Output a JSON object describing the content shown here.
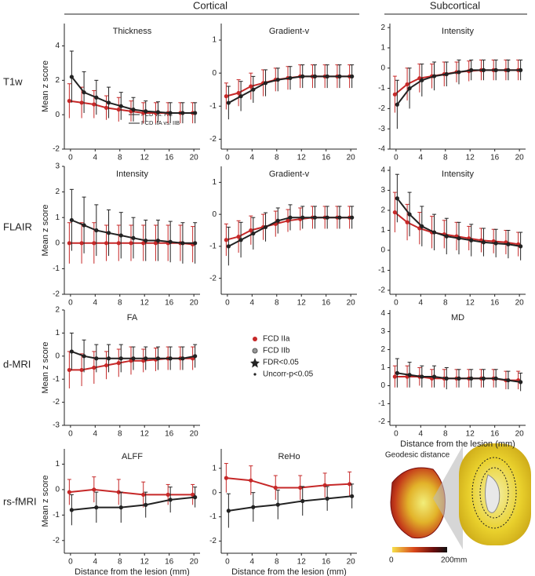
{
  "header": {
    "cortical": "Cortical",
    "subcortical": "Subcortical"
  },
  "row_labels": [
    "T1w",
    "FLAIR",
    "d-MRI",
    "rs-fMRI"
  ],
  "legend": {
    "items": [
      {
        "label": "FCD IIa",
        "color": "#c62828"
      },
      {
        "label": "FCD IIb",
        "color": "#777777"
      },
      {
        "label": "FDR<0.05",
        "color": "#222222"
      },
      {
        "label": "Uncorr-p<0.05",
        "color": "#222222"
      }
    ]
  },
  "inset": {
    "title": "Geodesic distance",
    "scale_min": "0",
    "scale_max": "200mm"
  },
  "chart_data": [
    {
      "type": "line",
      "title": "Thickness",
      "ylabel": "Mean z score",
      "annotations": [
        "FCD vs. HC",
        "FCD IIA vs. IIB"
      ],
      "x": [
        0,
        2,
        4,
        6,
        8,
        10,
        12,
        14,
        16,
        18,
        20
      ],
      "xlim": [
        -1,
        21
      ],
      "xticks": [
        0,
        4,
        8,
        12,
        16,
        20
      ],
      "ylim": [
        -2,
        5.3
      ],
      "yticks": [
        -2,
        0,
        2,
        4
      ],
      "series": [
        {
          "color": "#c62828",
          "values": [
            0.8,
            0.7,
            0.6,
            0.4,
            0.3,
            0.2,
            0.1,
            0.1,
            0.1,
            0.1,
            0.1
          ],
          "errors": [
            1.0,
            0.9,
            0.8,
            0.7,
            0.7,
            0.6,
            0.6,
            0.6,
            0.6,
            0.6,
            0.6
          ]
        },
        {
          "color": "#222222",
          "values": [
            2.2,
            1.3,
            1.0,
            0.7,
            0.5,
            0.3,
            0.2,
            0.15,
            0.1,
            0.1,
            0.1
          ],
          "errors": [
            1.5,
            1.2,
            1.0,
            0.9,
            0.8,
            0.7,
            0.6,
            0.6,
            0.6,
            0.6,
            0.6
          ]
        }
      ]
    },
    {
      "type": "line",
      "title": "Gradient-v",
      "x": [
        0,
        2,
        4,
        6,
        8,
        10,
        12,
        14,
        16,
        18,
        20
      ],
      "xlim": [
        -1,
        21
      ],
      "xticks": [
        0,
        4,
        8,
        12,
        16,
        20
      ],
      "ylim": [
        -2.3,
        1.5
      ],
      "yticks": [
        -2,
        -1,
        0,
        1
      ],
      "series": [
        {
          "color": "#c62828",
          "values": [
            -0.7,
            -0.6,
            -0.4,
            -0.3,
            -0.2,
            -0.15,
            -0.1,
            -0.1,
            -0.1,
            -0.1,
            -0.1
          ],
          "errors": [
            0.4,
            0.4,
            0.4,
            0.4,
            0.35,
            0.35,
            0.35,
            0.35,
            0.35,
            0.35,
            0.35
          ]
        },
        {
          "color": "#222222",
          "values": [
            -0.9,
            -0.7,
            -0.5,
            -0.3,
            -0.2,
            -0.15,
            -0.1,
            -0.1,
            -0.1,
            -0.1,
            -0.1
          ],
          "errors": [
            0.5,
            0.45,
            0.4,
            0.4,
            0.35,
            0.35,
            0.35,
            0.35,
            0.35,
            0.35,
            0.35
          ]
        }
      ]
    },
    {
      "type": "line",
      "title": "Intensity",
      "x": [
        0,
        2,
        4,
        6,
        8,
        10,
        12,
        14,
        16,
        18,
        20
      ],
      "xlim": [
        -1,
        21
      ],
      "xticks": [
        0,
        4,
        8,
        12,
        16,
        20
      ],
      "ylim": [
        -4,
        2.2
      ],
      "yticks": [
        -4,
        -3,
        -2,
        -1,
        0,
        1,
        2
      ],
      "series": [
        {
          "color": "#c62828",
          "values": [
            -1.3,
            -0.8,
            -0.5,
            -0.4,
            -0.3,
            -0.2,
            -0.15,
            -0.1,
            -0.1,
            -0.1,
            -0.1
          ],
          "errors": [
            0.9,
            0.8,
            0.7,
            0.6,
            0.6,
            0.5,
            0.5,
            0.5,
            0.5,
            0.5,
            0.5
          ]
        },
        {
          "color": "#222222",
          "values": [
            -1.8,
            -1.0,
            -0.6,
            -0.4,
            -0.3,
            -0.2,
            -0.1,
            -0.1,
            -0.1,
            -0.1,
            -0.1
          ],
          "errors": [
            1.2,
            1.0,
            0.8,
            0.7,
            0.6,
            0.6,
            0.5,
            0.5,
            0.5,
            0.5,
            0.5
          ]
        }
      ]
    },
    {
      "type": "line",
      "title": "Intensity",
      "ylabel": "Mean z score",
      "x": [
        0,
        2,
        4,
        6,
        8,
        10,
        12,
        14,
        16,
        18,
        20
      ],
      "xlim": [
        -1,
        21
      ],
      "xticks": [
        0,
        4,
        8,
        12,
        16,
        20
      ],
      "ylim": [
        -2,
        3
      ],
      "yticks": [
        -2,
        -1,
        0,
        1,
        2,
        3
      ],
      "series": [
        {
          "color": "#c62828",
          "values": [
            0,
            0,
            0,
            0,
            0,
            0,
            0,
            0,
            0,
            0,
            -0.05
          ],
          "errors": [
            0.8,
            0.8,
            0.8,
            0.7,
            0.7,
            0.7,
            0.7,
            0.7,
            0.7,
            0.7,
            0.7
          ]
        },
        {
          "color": "#222222",
          "values": [
            0.9,
            0.7,
            0.5,
            0.4,
            0.3,
            0.2,
            0.1,
            0.1,
            0.05,
            0,
            0
          ],
          "errors": [
            1.2,
            1.1,
            1.0,
            0.9,
            0.9,
            0.8,
            0.8,
            0.8,
            0.8,
            0.8,
            0.8
          ]
        }
      ]
    },
    {
      "type": "line",
      "title": "Gradient-v",
      "x": [
        0,
        2,
        4,
        6,
        8,
        10,
        12,
        14,
        16,
        18,
        20
      ],
      "xlim": [
        -1,
        21
      ],
      "xticks": [
        0,
        4,
        8,
        12,
        16,
        20
      ],
      "ylim": [
        -2.5,
        1.5
      ],
      "yticks": [
        -2,
        -1,
        0,
        1
      ],
      "series": [
        {
          "color": "#c62828",
          "values": [
            -0.8,
            -0.7,
            -0.5,
            -0.4,
            -0.3,
            -0.2,
            -0.15,
            -0.1,
            -0.1,
            -0.1,
            -0.1
          ],
          "errors": [
            0.5,
            0.5,
            0.45,
            0.4,
            0.4,
            0.35,
            0.35,
            0.35,
            0.35,
            0.35,
            0.35
          ]
        },
        {
          "color": "#222222",
          "values": [
            -1.0,
            -0.8,
            -0.6,
            -0.4,
            -0.2,
            -0.1,
            -0.1,
            -0.1,
            -0.1,
            -0.1,
            -0.1
          ],
          "errors": [
            0.6,
            0.55,
            0.5,
            0.45,
            0.4,
            0.4,
            0.35,
            0.35,
            0.35,
            0.35,
            0.35
          ]
        }
      ]
    },
    {
      "type": "line",
      "title": "Intensity",
      "x": [
        0,
        2,
        4,
        6,
        8,
        10,
        12,
        14,
        16,
        18,
        20
      ],
      "xlim": [
        -1,
        21
      ],
      "xticks": [
        0,
        4,
        8,
        12,
        16,
        20
      ],
      "ylim": [
        -2.2,
        4.2
      ],
      "yticks": [
        -2,
        -1,
        0,
        1,
        2,
        3,
        4
      ],
      "series": [
        {
          "color": "#c62828",
          "values": [
            1.9,
            1.4,
            1.1,
            0.9,
            0.8,
            0.7,
            0.6,
            0.5,
            0.45,
            0.4,
            0.3
          ],
          "errors": [
            1.0,
            0.9,
            0.8,
            0.8,
            0.7,
            0.7,
            0.6,
            0.6,
            0.6,
            0.6,
            0.6
          ]
        },
        {
          "color": "#222222",
          "values": [
            2.6,
            1.8,
            1.2,
            0.9,
            0.7,
            0.6,
            0.5,
            0.4,
            0.35,
            0.3,
            0.2
          ],
          "errors": [
            1.2,
            1.1,
            1.0,
            0.9,
            0.9,
            0.8,
            0.8,
            0.7,
            0.7,
            0.7,
            0.7
          ]
        }
      ]
    },
    {
      "type": "line",
      "title": "FA",
      "ylabel": "Mean z score",
      "x": [
        0,
        2,
        4,
        6,
        8,
        10,
        12,
        14,
        16,
        18,
        20
      ],
      "xlim": [
        -1,
        21
      ],
      "xticks": [
        0,
        4,
        8,
        12,
        16,
        20
      ],
      "ylim": [
        -3,
        2
      ],
      "yticks": [
        -3,
        -2,
        -1,
        0,
        1,
        2
      ],
      "series": [
        {
          "color": "#c62828",
          "values": [
            -0.6,
            -0.6,
            -0.5,
            -0.4,
            -0.3,
            -0.2,
            -0.2,
            -0.15,
            -0.1,
            -0.1,
            -0.1
          ],
          "errors": [
            0.8,
            0.7,
            0.7,
            0.6,
            0.6,
            0.6,
            0.5,
            0.5,
            0.5,
            0.5,
            0.5
          ]
        },
        {
          "color": "#222222",
          "values": [
            0.2,
            0,
            -0.1,
            -0.1,
            -0.1,
            -0.1,
            -0.1,
            -0.1,
            -0.1,
            -0.1,
            0
          ],
          "errors": [
            0.8,
            0.7,
            0.6,
            0.6,
            0.6,
            0.5,
            0.5,
            0.5,
            0.5,
            0.5,
            0.5
          ]
        }
      ]
    },
    {
      "type": "line",
      "title": "MD",
      "xlabel": "Distance from the lesion (mm)",
      "x": [
        0,
        2,
        4,
        6,
        8,
        10,
        12,
        14,
        16,
        18,
        20
      ],
      "xlim": [
        -1,
        21
      ],
      "xticks": [
        0,
        4,
        8,
        12,
        16,
        20
      ],
      "ylim": [
        -2.2,
        4.2
      ],
      "yticks": [
        -2,
        -1,
        0,
        1,
        2,
        3,
        4
      ],
      "series": [
        {
          "color": "#c62828",
          "values": [
            0.5,
            0.5,
            0.5,
            0.4,
            0.4,
            0.4,
            0.4,
            0.4,
            0.4,
            0.3,
            0.3
          ],
          "errors": [
            0.6,
            0.6,
            0.5,
            0.5,
            0.5,
            0.5,
            0.5,
            0.5,
            0.5,
            0.5,
            0.5
          ]
        },
        {
          "color": "#222222",
          "values": [
            0.7,
            0.6,
            0.5,
            0.5,
            0.4,
            0.4,
            0.4,
            0.4,
            0.4,
            0.3,
            0.2
          ],
          "errors": [
            0.8,
            0.7,
            0.6,
            0.6,
            0.6,
            0.5,
            0.5,
            0.5,
            0.5,
            0.5,
            0.5
          ]
        }
      ]
    },
    {
      "type": "line",
      "title": "ALFF",
      "ylabel": "Mean z score",
      "xlabel": "Distance from the lesion (mm)",
      "x": [
        0,
        4,
        8,
        12,
        16,
        20
      ],
      "xlim": [
        -1,
        21
      ],
      "xticks": [
        0,
        4,
        8,
        12,
        16,
        20
      ],
      "ylim": [
        -2.5,
        1.6
      ],
      "yticks": [
        -2,
        -1,
        0,
        1
      ],
      "series": [
        {
          "color": "#c62828",
          "values": [
            -0.1,
            0,
            -0.1,
            -0.2,
            -0.2,
            -0.2
          ],
          "errors": [
            0.5,
            0.5,
            0.5,
            0.5,
            0.4,
            0.4
          ]
        },
        {
          "color": "#222222",
          "values": [
            -0.8,
            -0.7,
            -0.7,
            -0.6,
            -0.4,
            -0.3
          ],
          "errors": [
            0.6,
            0.6,
            0.6,
            0.5,
            0.5,
            0.4
          ]
        }
      ]
    },
    {
      "type": "line",
      "title": "ReHo",
      "xlabel": "Distance from the lesion (mm)",
      "x": [
        0,
        4,
        8,
        12,
        16,
        20
      ],
      "xlim": [
        -1,
        21
      ],
      "xticks": [
        0,
        4,
        8,
        12,
        16,
        20
      ],
      "ylim": [
        -2.5,
        1.8
      ],
      "yticks": [
        -2,
        -1,
        0,
        1
      ],
      "series": [
        {
          "color": "#c62828",
          "values": [
            0.6,
            0.5,
            0.2,
            0.2,
            0.3,
            0.35
          ],
          "errors": [
            0.6,
            0.6,
            0.5,
            0.5,
            0.5,
            0.5
          ]
        },
        {
          "color": "#222222",
          "values": [
            -0.75,
            -0.6,
            -0.5,
            -0.35,
            -0.25,
            -0.15
          ],
          "errors": [
            0.7,
            0.6,
            0.6,
            0.6,
            0.5,
            0.5
          ]
        }
      ]
    }
  ]
}
